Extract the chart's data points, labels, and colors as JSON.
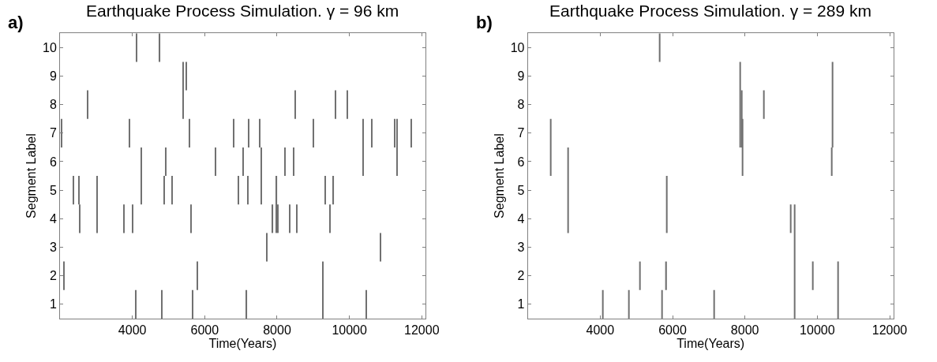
{
  "chart_data": [
    {
      "type": "bar",
      "title": "Earthquake Process Simulation. γ = 96 km",
      "annotations": [
        "a)"
      ],
      "xlabel": "Time(Years)",
      "ylabel": "Segment Label",
      "x": [
        2050,
        2100,
        2370,
        2515,
        2550,
        2760,
        3030,
        3760,
        3920,
        4010,
        4100,
        4110,
        4250,
        4760,
        4820,
        4880,
        4930,
        5090,
        5400,
        5490,
        5580,
        5620,
        5660,
        5800,
        6300,
        6800,
        6930,
        7060,
        7160,
        7190,
        7220,
        7520,
        7570,
        7720,
        7880,
        7990,
        8020,
        8220,
        8340,
        8460,
        8510,
        8540,
        9010,
        9260,
        9340,
        9470,
        9560,
        9620,
        9940,
        10370,
        10460,
        10610,
        10860,
        11260,
        11310,
        11710
      ],
      "base": [
        6.5,
        1.5,
        4.5,
        4.5,
        3.5,
        7.5,
        3.5,
        3.5,
        6.5,
        3.5,
        0.5,
        9.5,
        4.5,
        9.5,
        0.5,
        4.5,
        5.5,
        4.5,
        7.5,
        8.5,
        6.5,
        3.5,
        0.5,
        1.5,
        5.5,
        6.5,
        4.5,
        5.5,
        0.5,
        4.5,
        6.5,
        6.5,
        4.5,
        2.5,
        3.5,
        3.5,
        3.5,
        5.5,
        3.5,
        5.5,
        7.5,
        3.5,
        6.5,
        0.5,
        4.5,
        3.5,
        4.5,
        7.5,
        7.5,
        5.5,
        0.5,
        6.5,
        2.5,
        6.5,
        5.5,
        6.5
      ],
      "values": [
        1,
        1,
        1,
        1,
        1,
        1,
        2,
        1,
        1,
        1,
        1,
        1,
        2,
        1,
        1,
        1,
        1,
        1,
        2,
        1,
        1,
        1,
        1,
        1,
        1,
        1,
        1,
        1,
        1,
        1,
        1,
        1,
        2,
        1,
        1,
        2,
        1,
        1,
        1,
        1,
        1,
        1,
        1,
        2,
        1,
        1,
        1,
        1,
        1,
        2,
        1,
        1,
        1,
        1,
        2,
        1
      ],
      "color": "#707070",
      "xlim": [
        2000,
        12100
      ],
      "xticks": [
        4000,
        6000,
        8000,
        10000,
        12000
      ],
      "ylim": [
        0.5,
        10.5
      ],
      "yticks": [
        1,
        2,
        3,
        4,
        5,
        6,
        7,
        8,
        9,
        10
      ]
    },
    {
      "type": "bar",
      "title": "Earthquake Process Simulation. γ = 289 km",
      "annotations": [
        "b)"
      ],
      "xlabel": "Time(Years)",
      "ylabel": "Segment Label",
      "x": [
        2630,
        3110,
        4080,
        4800,
        5100,
        5650,
        5700,
        5830,
        5850,
        7140,
        7870,
        7910,
        7930,
        8520,
        9260,
        9380,
        9870,
        10400,
        10430,
        10580
      ],
      "base": [
        5.5,
        3.5,
        0.5,
        0.5,
        1.5,
        9.5,
        0.5,
        1.5,
        3.5,
        0.5,
        6.5,
        6.5,
        5.5,
        7.5,
        3.5,
        0.5,
        1.5,
        5.5,
        6.5,
        0.5
      ],
      "values": [
        2,
        3,
        1,
        1,
        1,
        1,
        1,
        1,
        2,
        1,
        3,
        2,
        2,
        1,
        1,
        4,
        1,
        1,
        3,
        2
      ],
      "color": "#707070",
      "xlim": [
        2000,
        12100
      ],
      "xticks": [
        4000,
        6000,
        8000,
        10000,
        12000
      ],
      "ylim": [
        0.5,
        10.5
      ],
      "yticks": [
        1,
        2,
        3,
        4,
        5,
        6,
        7,
        8,
        9,
        10
      ]
    }
  ]
}
